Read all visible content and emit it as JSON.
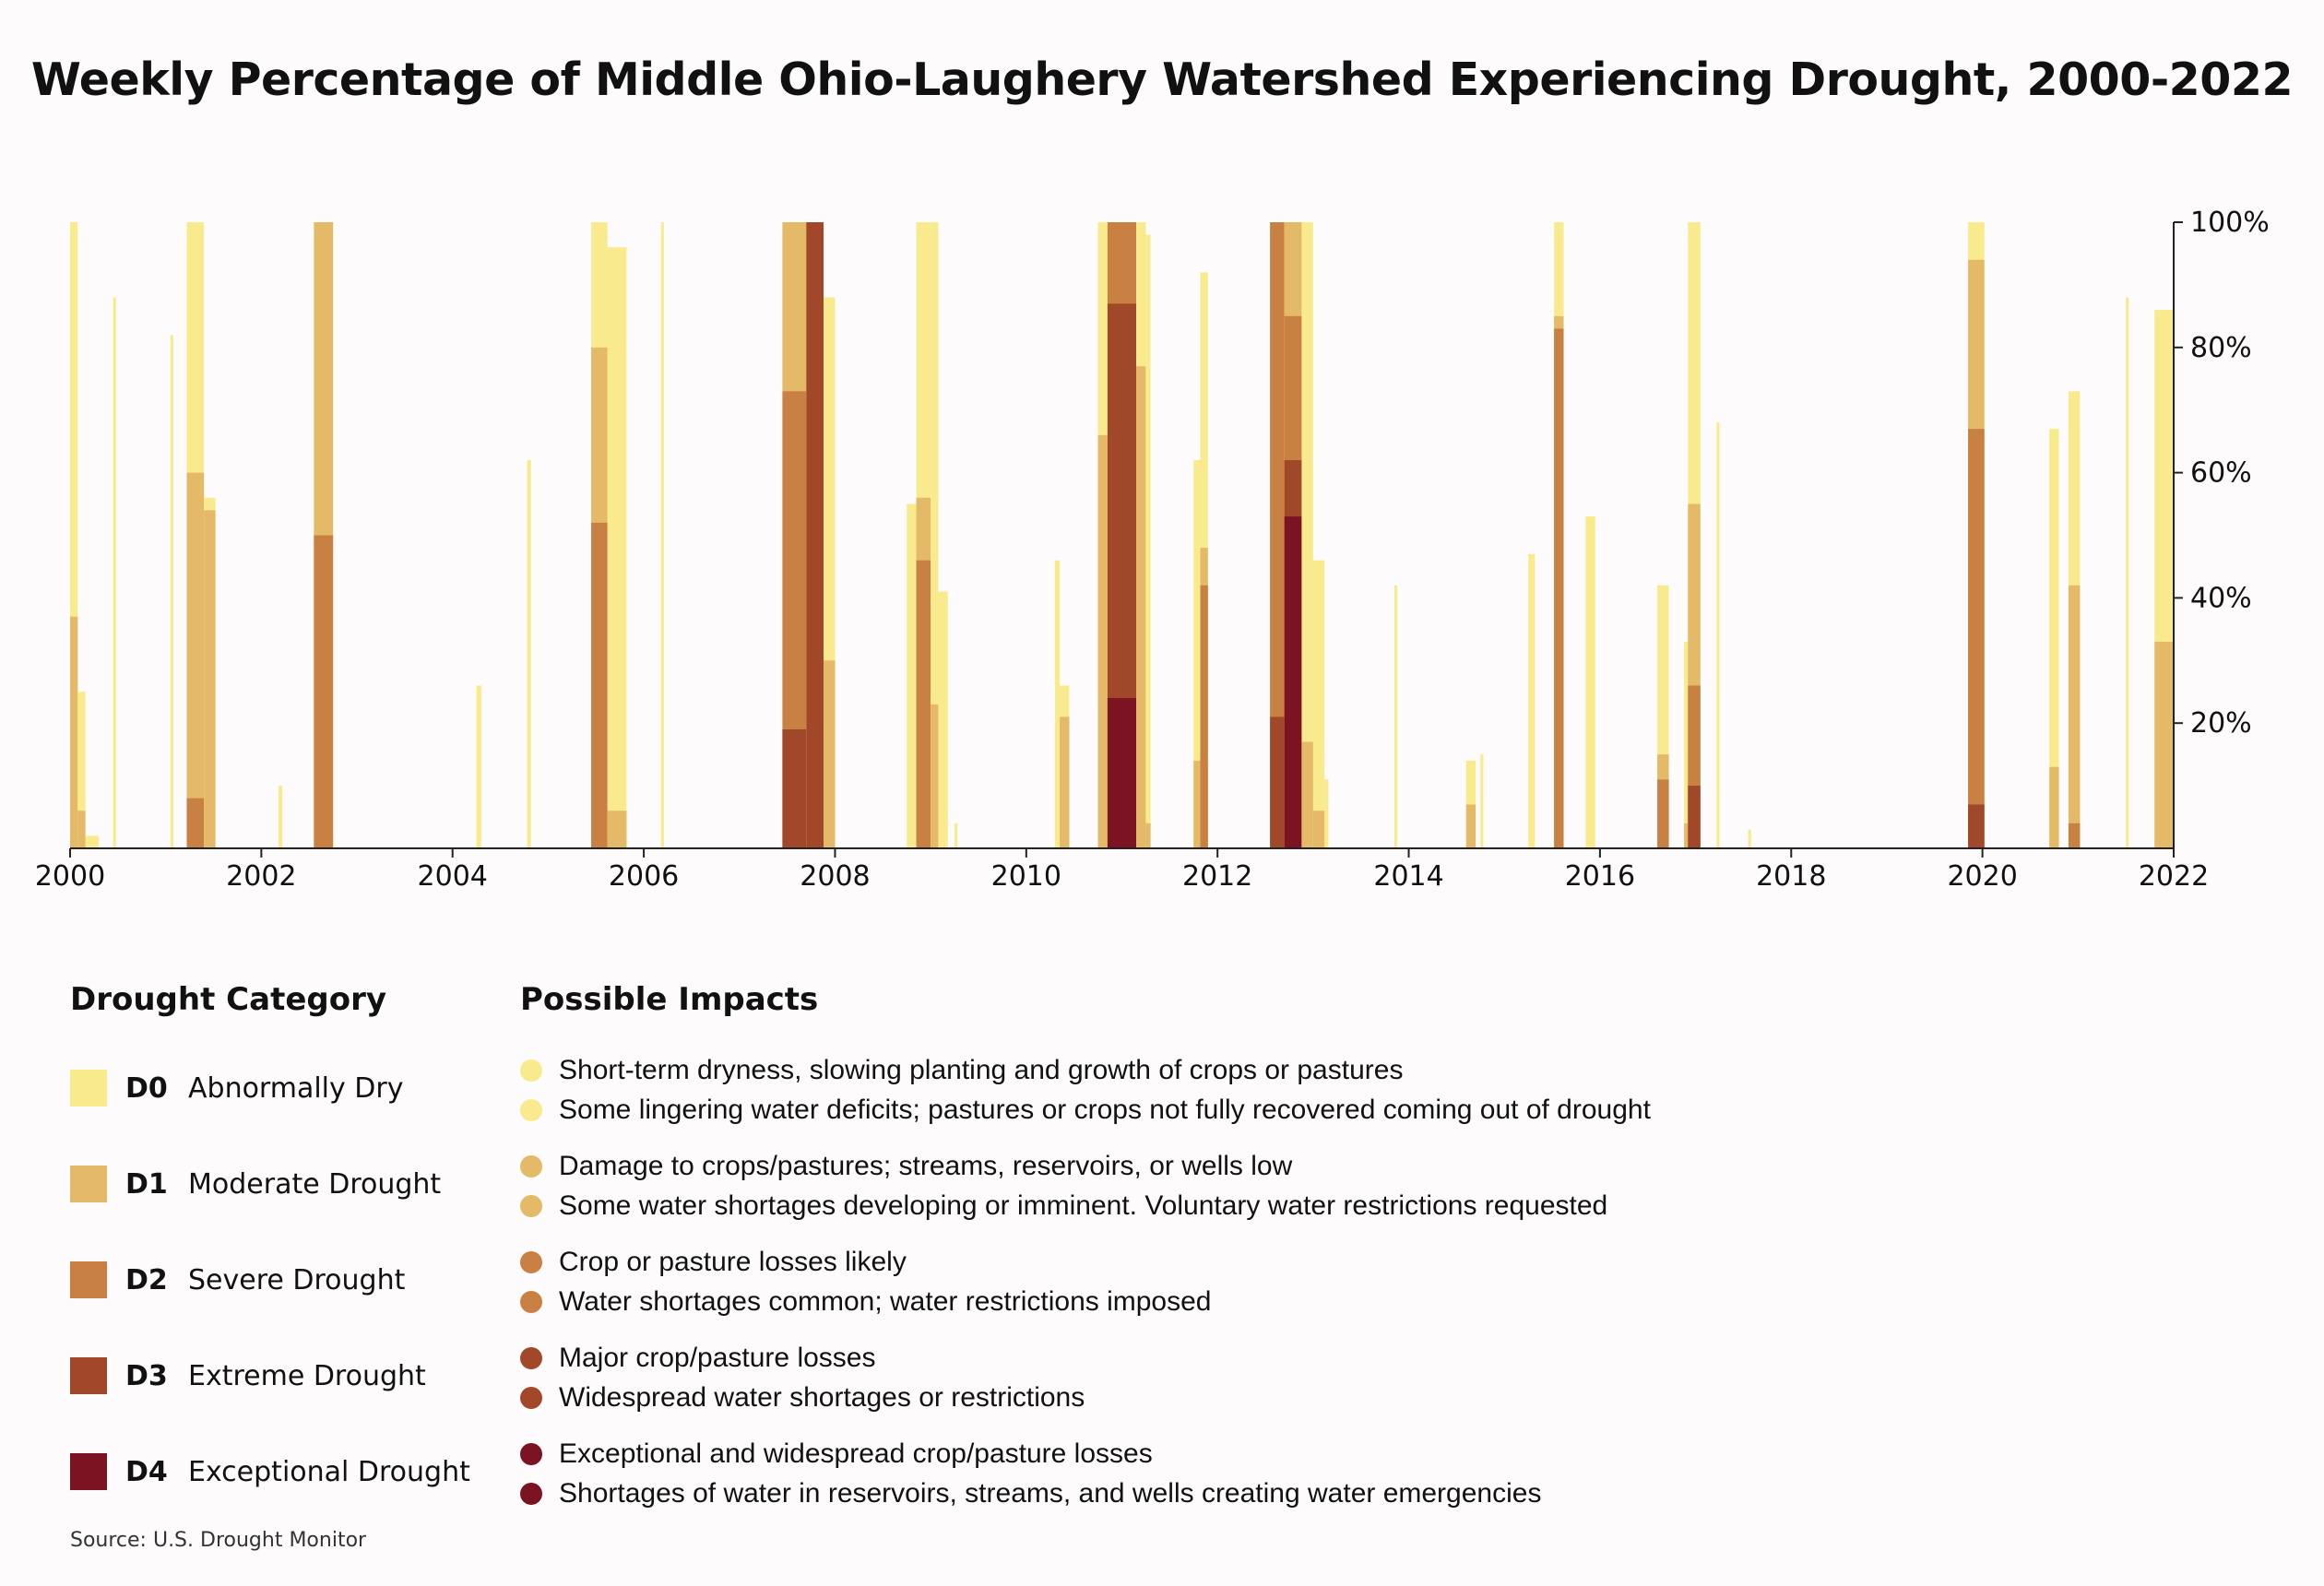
{
  "title": "Weekly Percentage of Middle Ohio-Laughery Watershed Experiencing Drought, 2000-2022",
  "colors": {
    "D0": "#faea8e",
    "D1": "#e4b968",
    "D2": "#c98043",
    "D3": "#a2482a",
    "D4": "#7b1323"
  },
  "chart_data": {
    "type": "area",
    "title": "Weekly Percentage of Middle Ohio-Laughery Watershed Experiencing Drought, 2000-2022",
    "xlabel": "",
    "ylabel": "",
    "xlim": [
      2000,
      2022
    ],
    "ylim": [
      0,
      100
    ],
    "x_ticks": [
      "2000",
      "2002",
      "2004",
      "2006",
      "2008",
      "2010",
      "2012",
      "2014",
      "2016",
      "2018",
      "2020",
      "2022"
    ],
    "y_ticks": [
      "20%",
      "40%",
      "60%",
      "80%",
      "100%"
    ],
    "series_note": "Each episode: start year, end year, and percent of watershed in category D0-D4 or worse",
    "episodes": [
      {
        "start": 2000.0,
        "end": 2000.08,
        "D0": 100,
        "D1": 37,
        "D2": 0,
        "D3": 0,
        "D4": 0
      },
      {
        "start": 2000.08,
        "end": 2000.16,
        "D0": 25,
        "D1": 6,
        "D2": 0,
        "D3": 0,
        "D4": 0
      },
      {
        "start": 2000.16,
        "end": 2000.3,
        "D0": 2,
        "D1": 0,
        "D2": 0,
        "D3": 0,
        "D4": 0
      },
      {
        "start": 2000.45,
        "end": 2000.48,
        "D0": 88,
        "D1": 0,
        "D2": 0,
        "D3": 0,
        "D4": 0
      },
      {
        "start": 2001.05,
        "end": 2001.08,
        "D0": 82,
        "D1": 0,
        "D2": 0,
        "D3": 0,
        "D4": 0
      },
      {
        "start": 2001.22,
        "end": 2001.4,
        "D0": 100,
        "D1": 60,
        "D2": 8,
        "D3": 0,
        "D4": 0
      },
      {
        "start": 2001.4,
        "end": 2001.52,
        "D0": 56,
        "D1": 54,
        "D2": 0,
        "D3": 0,
        "D4": 0
      },
      {
        "start": 2002.18,
        "end": 2002.22,
        "D0": 10,
        "D1": 0,
        "D2": 0,
        "D3": 0,
        "D4": 0
      },
      {
        "start": 2002.55,
        "end": 2002.75,
        "D0": 100,
        "D1": 100,
        "D2": 50,
        "D3": 0,
        "D4": 0
      },
      {
        "start": 2004.25,
        "end": 2004.3,
        "D0": 26,
        "D1": 0,
        "D2": 0,
        "D3": 0,
        "D4": 0
      },
      {
        "start": 2004.78,
        "end": 2004.82,
        "D0": 62,
        "D1": 0,
        "D2": 0,
        "D3": 0,
        "D4": 0
      },
      {
        "start": 2005.45,
        "end": 2005.62,
        "D0": 100,
        "D1": 80,
        "D2": 52,
        "D3": 0,
        "D4": 0
      },
      {
        "start": 2005.62,
        "end": 2005.82,
        "D0": 96,
        "D1": 6,
        "D2": 0,
        "D3": 0,
        "D4": 0
      },
      {
        "start": 2006.18,
        "end": 2006.21,
        "D0": 100,
        "D1": 0,
        "D2": 0,
        "D3": 0,
        "D4": 0
      },
      {
        "start": 2007.45,
        "end": 2007.7,
        "D0": 100,
        "D1": 100,
        "D2": 73,
        "D3": 19,
        "D4": 0
      },
      {
        "start": 2007.7,
        "end": 2007.88,
        "D0": 100,
        "D1": 100,
        "D2": 100,
        "D3": 100,
        "D4": 0
      },
      {
        "start": 2007.88,
        "end": 2008.0,
        "D0": 88,
        "D1": 30,
        "D2": 0,
        "D3": 0,
        "D4": 0
      },
      {
        "start": 2008.75,
        "end": 2008.85,
        "D0": 55,
        "D1": 0,
        "D2": 0,
        "D3": 0,
        "D4": 0
      },
      {
        "start": 2008.85,
        "end": 2009.0,
        "D0": 100,
        "D1": 56,
        "D2": 46,
        "D3": 0,
        "D4": 0
      },
      {
        "start": 2009.0,
        "end": 2009.08,
        "D0": 100,
        "D1": 23,
        "D2": 0,
        "D3": 0,
        "D4": 0
      },
      {
        "start": 2009.08,
        "end": 2009.18,
        "D0": 41,
        "D1": 0,
        "D2": 0,
        "D3": 0,
        "D4": 0
      },
      {
        "start": 2009.25,
        "end": 2009.28,
        "D0": 4,
        "D1": 0,
        "D2": 0,
        "D3": 0,
        "D4": 0
      },
      {
        "start": 2010.3,
        "end": 2010.35,
        "D0": 46,
        "D1": 0,
        "D2": 0,
        "D3": 0,
        "D4": 0
      },
      {
        "start": 2010.35,
        "end": 2010.45,
        "D0": 26,
        "D1": 21,
        "D2": 0,
        "D3": 0,
        "D4": 0
      },
      {
        "start": 2010.75,
        "end": 2010.85,
        "D0": 100,
        "D1": 66,
        "D2": 0,
        "D3": 0,
        "D4": 0
      },
      {
        "start": 2010.85,
        "end": 2011.15,
        "D0": 100,
        "D1": 100,
        "D2": 100,
        "D3": 87,
        "D4": 24
      },
      {
        "start": 2011.15,
        "end": 2011.25,
        "D0": 100,
        "D1": 77,
        "D2": 0,
        "D3": 0,
        "D4": 0
      },
      {
        "start": 2011.25,
        "end": 2011.3,
        "D0": 98,
        "D1": 4,
        "D2": 0,
        "D3": 0,
        "D4": 0
      },
      {
        "start": 2011.75,
        "end": 2011.82,
        "D0": 62,
        "D1": 14,
        "D2": 0,
        "D3": 0,
        "D4": 0
      },
      {
        "start": 2011.82,
        "end": 2011.9,
        "D0": 92,
        "D1": 48,
        "D2": 42,
        "D3": 0,
        "D4": 0
      },
      {
        "start": 2012.55,
        "end": 2012.7,
        "D0": 100,
        "D1": 100,
        "D2": 100,
        "D3": 21,
        "D4": 0
      },
      {
        "start": 2012.7,
        "end": 2012.88,
        "D0": 100,
        "D1": 100,
        "D2": 85,
        "D3": 62,
        "D4": 53
      },
      {
        "start": 2012.88,
        "end": 2013.0,
        "D0": 100,
        "D1": 17,
        "D2": 0,
        "D3": 0,
        "D4": 0
      },
      {
        "start": 2013.0,
        "end": 2013.12,
        "D0": 46,
        "D1": 6,
        "D2": 0,
        "D3": 0,
        "D4": 0
      },
      {
        "start": 2013.12,
        "end": 2013.16,
        "D0": 11,
        "D1": 0,
        "D2": 0,
        "D3": 0,
        "D4": 0
      },
      {
        "start": 2013.85,
        "end": 2013.88,
        "D0": 42,
        "D1": 0,
        "D2": 0,
        "D3": 0,
        "D4": 0
      },
      {
        "start": 2014.6,
        "end": 2014.7,
        "D0": 14,
        "D1": 7,
        "D2": 0,
        "D3": 0,
        "D4": 0
      },
      {
        "start": 2014.75,
        "end": 2014.78,
        "D0": 15,
        "D1": 0,
        "D2": 0,
        "D3": 0,
        "D4": 0
      },
      {
        "start": 2015.25,
        "end": 2015.32,
        "D0": 47,
        "D1": 0,
        "D2": 0,
        "D3": 0,
        "D4": 0
      },
      {
        "start": 2015.52,
        "end": 2015.62,
        "D0": 100,
        "D1": 85,
        "D2": 83,
        "D3": 0,
        "D4": 0
      },
      {
        "start": 2015.85,
        "end": 2015.95,
        "D0": 53,
        "D1": 0,
        "D2": 0,
        "D3": 0,
        "D4": 0
      },
      {
        "start": 2016.6,
        "end": 2016.72,
        "D0": 42,
        "D1": 15,
        "D2": 11,
        "D3": 0,
        "D4": 0
      },
      {
        "start": 2016.88,
        "end": 2016.92,
        "D0": 33,
        "D1": 4,
        "D2": 0,
        "D3": 0,
        "D4": 0
      },
      {
        "start": 2016.92,
        "end": 2017.05,
        "D0": 100,
        "D1": 55,
        "D2": 26,
        "D3": 10,
        "D4": 0
      },
      {
        "start": 2017.22,
        "end": 2017.25,
        "D0": 68,
        "D1": 0,
        "D2": 0,
        "D3": 0,
        "D4": 0
      },
      {
        "start": 2017.55,
        "end": 2017.58,
        "D0": 3,
        "D1": 0,
        "D2": 0,
        "D3": 0,
        "D4": 0
      },
      {
        "start": 2019.85,
        "end": 2020.02,
        "D0": 100,
        "D1": 94,
        "D2": 67,
        "D3": 7,
        "D4": 0
      },
      {
        "start": 2020.7,
        "end": 2020.8,
        "D0": 67,
        "D1": 13,
        "D2": 0,
        "D3": 0,
        "D4": 0
      },
      {
        "start": 2020.9,
        "end": 2021.02,
        "D0": 73,
        "D1": 42,
        "D2": 4,
        "D3": 0,
        "D4": 0
      },
      {
        "start": 2021.5,
        "end": 2021.53,
        "D0": 88,
        "D1": 0,
        "D2": 0,
        "D3": 0,
        "D4": 0
      },
      {
        "start": 2021.8,
        "end": 2022.0,
        "D0": 86,
        "D1": 33,
        "D2": 0,
        "D3": 0,
        "D4": 0
      }
    ]
  },
  "legend": {
    "category_heading": "Drought Category",
    "impacts_heading": "Possible Impacts",
    "categories": [
      {
        "code": "D0",
        "label": "Abnormally Dry",
        "impacts": [
          "Short-term dryness, slowing planting and growth of crops or pastures",
          "Some lingering water deficits; pastures or crops not fully recovered coming out of drought"
        ]
      },
      {
        "code": "D1",
        "label": "Moderate Drought",
        "impacts": [
          "Damage to crops/pastures; streams, reservoirs, or wells low",
          "Some water shortages developing or imminent. Voluntary water restrictions requested"
        ]
      },
      {
        "code": "D2",
        "label": "Severe Drought",
        "impacts": [
          "Crop or pasture losses likely",
          "Water shortages common; water restrictions imposed"
        ]
      },
      {
        "code": "D3",
        "label": "Extreme Drought",
        "impacts": [
          "Major crop/pasture losses",
          "Widespread water shortages or restrictions"
        ]
      },
      {
        "code": "D4",
        "label": "Exceptional Drought",
        "impacts": [
          "Exceptional and widespread crop/pasture losses",
          "Shortages of water in reservoirs, streams, and wells creating water emergencies"
        ]
      }
    ]
  },
  "source": "Source: U.S. Drought Monitor"
}
